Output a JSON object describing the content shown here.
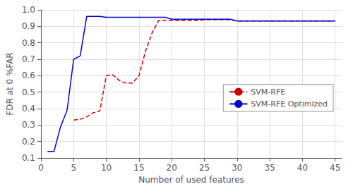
{
  "chart_data": {
    "type": "line",
    "xlabel": "Number of used features",
    "ylabel": "FDR at 0 %FAR",
    "series": [
      {
        "name": "SVM-RFE",
        "color": "#cc0000",
        "line_style": "dashed",
        "x": [
          5,
          6,
          7,
          8,
          9,
          10,
          11,
          12,
          13,
          14,
          15,
          16,
          17,
          18,
          19,
          20,
          21,
          22,
          23,
          24,
          25,
          26,
          27,
          28,
          29,
          30,
          31,
          32,
          33,
          34,
          35,
          36,
          37,
          38,
          39,
          40,
          41,
          42,
          43,
          44,
          45
        ],
        "values": [
          0.33,
          0.335,
          0.35,
          0.375,
          0.385,
          0.6,
          0.605,
          0.57,
          0.555,
          0.555,
          0.6,
          0.75,
          0.86,
          0.935,
          0.935,
          0.935,
          0.935,
          0.935,
          0.935,
          0.935,
          0.94,
          0.94,
          0.94,
          0.94,
          0.94,
          0.932,
          0.932,
          0.932,
          0.932,
          0.932,
          0.932,
          0.932,
          0.932,
          0.932,
          0.932,
          0.932,
          0.932,
          0.932,
          0.932,
          0.932,
          0.932
        ]
      },
      {
        "name": "SVM-RFE Optimized",
        "color": "#0000cd",
        "line_style": "solid",
        "x": [
          1,
          2,
          3,
          4,
          5,
          6,
          7,
          8,
          9,
          10,
          11,
          12,
          13,
          14,
          15,
          16,
          17,
          18,
          19,
          20,
          21,
          22,
          23,
          24,
          25,
          26,
          27,
          28,
          29,
          30,
          31,
          32,
          33,
          34,
          35,
          36,
          37,
          38,
          39,
          40,
          41,
          42,
          43,
          44,
          45
        ],
        "values": [
          0.14,
          0.14,
          0.29,
          0.39,
          0.7,
          0.72,
          0.96,
          0.96,
          0.96,
          0.955,
          0.955,
          0.955,
          0.955,
          0.955,
          0.955,
          0.955,
          0.955,
          0.955,
          0.955,
          0.943,
          0.943,
          0.943,
          0.943,
          0.943,
          0.943,
          0.943,
          0.943,
          0.943,
          0.943,
          0.932,
          0.932,
          0.932,
          0.932,
          0.932,
          0.932,
          0.932,
          0.932,
          0.932,
          0.932,
          0.932,
          0.932,
          0.932,
          0.932,
          0.932,
          0.932
        ]
      }
    ],
    "xlim": [
      0,
      46
    ],
    "ylim": [
      0.1,
      1.0
    ],
    "xticks": [
      0,
      5,
      10,
      15,
      20,
      25,
      30,
      35,
      40,
      45
    ],
    "yticks": [
      0.1,
      0.2,
      0.3,
      0.4,
      0.5,
      0.6,
      0.7,
      0.8,
      0.9,
      {
        "value": 1.0,
        "label": "1.0"
      }
    ],
    "grid": true,
    "legend": "lower right"
  }
}
